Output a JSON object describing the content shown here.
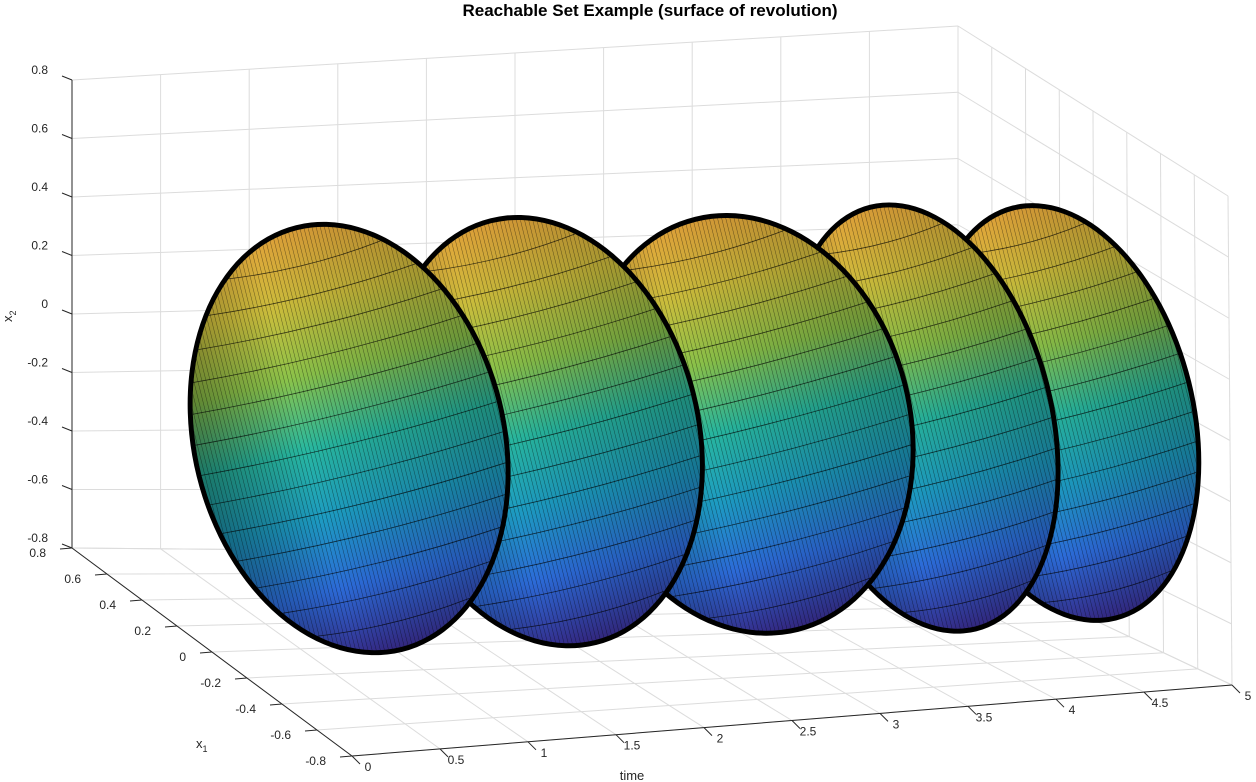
{
  "chart_data": {
    "type": "surface3d",
    "title": "Reachable Set Example (surface of revolution)",
    "xlabel": "time",
    "ylabel_main": "x",
    "ylabel_sub": "1",
    "zlabel_main": "x",
    "zlabel_sub": "2",
    "time_ticks": [
      "0",
      "0.5",
      "1",
      "1.5",
      "2",
      "2.5",
      "3",
      "3.5",
      "4",
      "4.5",
      "5"
    ],
    "x1_ticks": [
      "-0.8",
      "-0.6",
      "-0.4",
      "-0.2",
      "0",
      "0.2",
      "0.4",
      "0.6",
      "0.8"
    ],
    "x2_ticks": [
      "-0.8",
      "-0.6",
      "-0.4",
      "-0.2",
      "0",
      "0.2",
      "0.4",
      "0.6",
      "0.8"
    ],
    "xlim": [
      0,
      5
    ],
    "ylim": [
      -0.8,
      0.8
    ],
    "zlim": [
      -0.8,
      0.8
    ],
    "grid": true,
    "colormap": "parula",
    "colormap_stops": [
      "#352a87",
      "#2c6bd8",
      "#1d9bc2",
      "#28b8a0",
      "#8bc34a",
      "#cbbd3c",
      "#e2a43a"
    ],
    "lobes": [
      {
        "t_start": 0.0,
        "t_end": 1.1,
        "peak_radius": 0.72
      },
      {
        "t_start": 1.1,
        "t_end": 2.2,
        "peak_radius": 0.72
      },
      {
        "t_start": 2.2,
        "t_end": 3.4,
        "peak_radius": 0.7
      },
      {
        "t_start": 3.4,
        "t_end": 4.2,
        "peak_radius": 0.72
      },
      {
        "t_start": 4.2,
        "t_end": 5.0,
        "peak_radius": 0.7
      }
    ]
  }
}
